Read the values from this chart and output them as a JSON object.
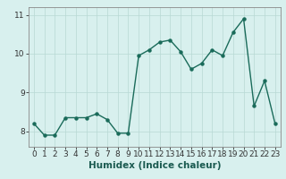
{
  "x": [
    0,
    1,
    2,
    3,
    4,
    5,
    6,
    7,
    8,
    9,
    10,
    11,
    12,
    13,
    14,
    15,
    16,
    17,
    18,
    19,
    20,
    21,
    22,
    23
  ],
  "y": [
    8.2,
    7.9,
    7.9,
    8.35,
    8.35,
    8.35,
    8.45,
    8.3,
    7.95,
    7.95,
    9.95,
    10.1,
    10.3,
    10.35,
    10.05,
    9.6,
    9.75,
    10.1,
    9.95,
    10.55,
    10.9,
    8.65,
    9.3,
    8.2
  ],
  "line_color": "#1a6b5a",
  "marker": "o",
  "markersize": 2.2,
  "linewidth": 1.0,
  "xlabel": "Humidex (Indice chaleur)",
  "xlim": [
    -0.5,
    23.5
  ],
  "ylim": [
    7.6,
    11.2
  ],
  "yticks": [
    8,
    9,
    10,
    11
  ],
  "xticks": [
    0,
    1,
    2,
    3,
    4,
    5,
    6,
    7,
    8,
    9,
    10,
    11,
    12,
    13,
    14,
    15,
    16,
    17,
    18,
    19,
    20,
    21,
    22,
    23
  ],
  "bg_color": "#d8f0ee",
  "grid_color": "#b8d8d4",
  "xlabel_fontsize": 7.5,
  "tick_fontsize": 6.5
}
